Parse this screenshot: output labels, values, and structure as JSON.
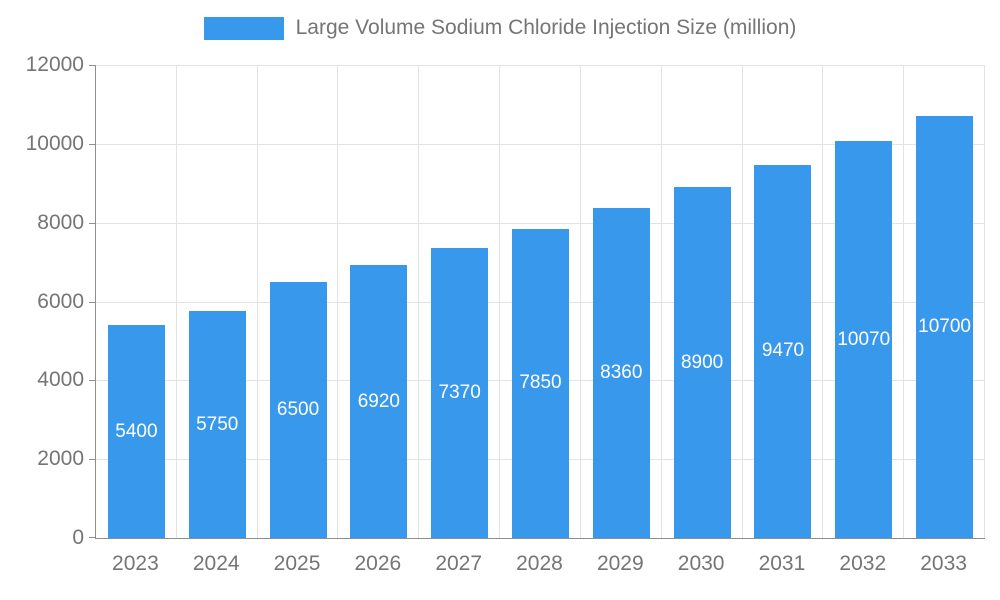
{
  "colors": {
    "bar": "#3898EC",
    "grid": "#e3e3e3",
    "axis": "#8e8e8e",
    "tick_text": "#757575",
    "bar_label_text": "#ffffff"
  },
  "legend": {
    "label": "Large Volume Sodium Chloride Injection Size (million)",
    "position": "top"
  },
  "chart_data": {
    "type": "bar",
    "title": "Large Volume Sodium Chloride Injection Size (million)",
    "categories": [
      "2023",
      "2024",
      "2025",
      "2026",
      "2027",
      "2028",
      "2029",
      "2030",
      "2031",
      "2032",
      "2033"
    ],
    "values": [
      5400,
      5750,
      6500,
      6920,
      7370,
      7850,
      8360,
      8900,
      9470,
      10070,
      10700
    ],
    "xlabel": "",
    "ylabel": "",
    "ylim": [
      0,
      12000
    ],
    "yticks": [
      0,
      2000,
      4000,
      6000,
      8000,
      10000,
      12000
    ],
    "grid": true,
    "legend_position": "top",
    "bar_labels_inside": true
  }
}
